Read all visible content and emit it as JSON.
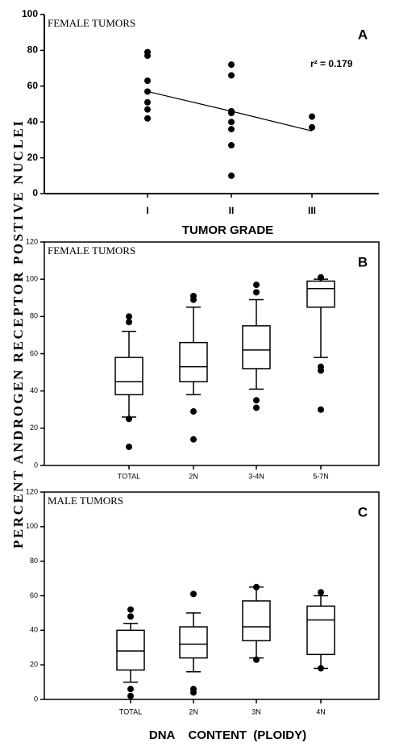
{
  "ylabel": "PERCENT ANDROGEN RECEPTOR POSTIVE NUCLEI",
  "chart_data": [
    {
      "type": "scatter",
      "annotation": "FEMALE TUMORS",
      "panel": "A",
      "stat": "r² = 0.179",
      "xlabel": "TUMOR GRADE",
      "categories": [
        "I",
        "II",
        "III"
      ],
      "values": [
        [
          79,
          77,
          63,
          57,
          51,
          47,
          42
        ],
        [
          72,
          66,
          46,
          45,
          40,
          36,
          27,
          10
        ],
        [
          43,
          37
        ]
      ],
      "fit": [
        57,
        46,
        35
      ],
      "ylim": [
        0,
        100
      ],
      "yticks": [
        0,
        20,
        40,
        60,
        80,
        100
      ]
    },
    {
      "type": "box",
      "annotation": "FEMALE TUMORS",
      "panel": "B",
      "categories": [
        "TOTAL",
        "2N",
        "3-4N",
        "5-7N"
      ],
      "boxes": [
        {
          "low": 26,
          "q1": 38,
          "median": 45,
          "q3": 58,
          "high": 72,
          "outliers": [
            80,
            77,
            25,
            10
          ]
        },
        {
          "low": 38,
          "q1": 45,
          "median": 53,
          "q3": 66,
          "high": 85,
          "outliers": [
            91,
            89,
            29,
            14
          ]
        },
        {
          "low": 41,
          "q1": 52,
          "median": 62,
          "q3": 75,
          "high": 89,
          "outliers": [
            97,
            93,
            35,
            31
          ]
        },
        {
          "low": 58,
          "q1": 85,
          "median": 95,
          "q3": 99,
          "high": 100,
          "outliers": [
            101,
            53,
            51,
            30
          ]
        }
      ],
      "ylim": [
        0,
        120
      ],
      "yticks": [
        0,
        20,
        40,
        60,
        80,
        100,
        120
      ]
    },
    {
      "type": "box",
      "annotation": "MALE TUMORS",
      "panel": "C",
      "xlabel": "DNA    CONTENT  (PLOIDY)",
      "categories": [
        "TOTAL",
        "2N",
        "3N",
        "4N"
      ],
      "boxes": [
        {
          "low": 10,
          "q1": 17,
          "median": 28,
          "q3": 40,
          "high": 44,
          "outliers": [
            52,
            48,
            6,
            2
          ]
        },
        {
          "low": 16,
          "q1": 24,
          "median": 32,
          "q3": 42,
          "high": 50,
          "outliers": [
            61,
            6,
            4
          ]
        },
        {
          "low": 24,
          "q1": 34,
          "median": 42,
          "q3": 57,
          "high": 65,
          "outliers": [
            65,
            23
          ]
        },
        {
          "low": 18,
          "q1": 26,
          "median": 46,
          "q3": 54,
          "high": 60,
          "outliers": [
            62,
            18
          ]
        }
      ],
      "ylim": [
        0,
        120
      ],
      "yticks": [
        0,
        20,
        40,
        60,
        80,
        100,
        120
      ]
    }
  ]
}
